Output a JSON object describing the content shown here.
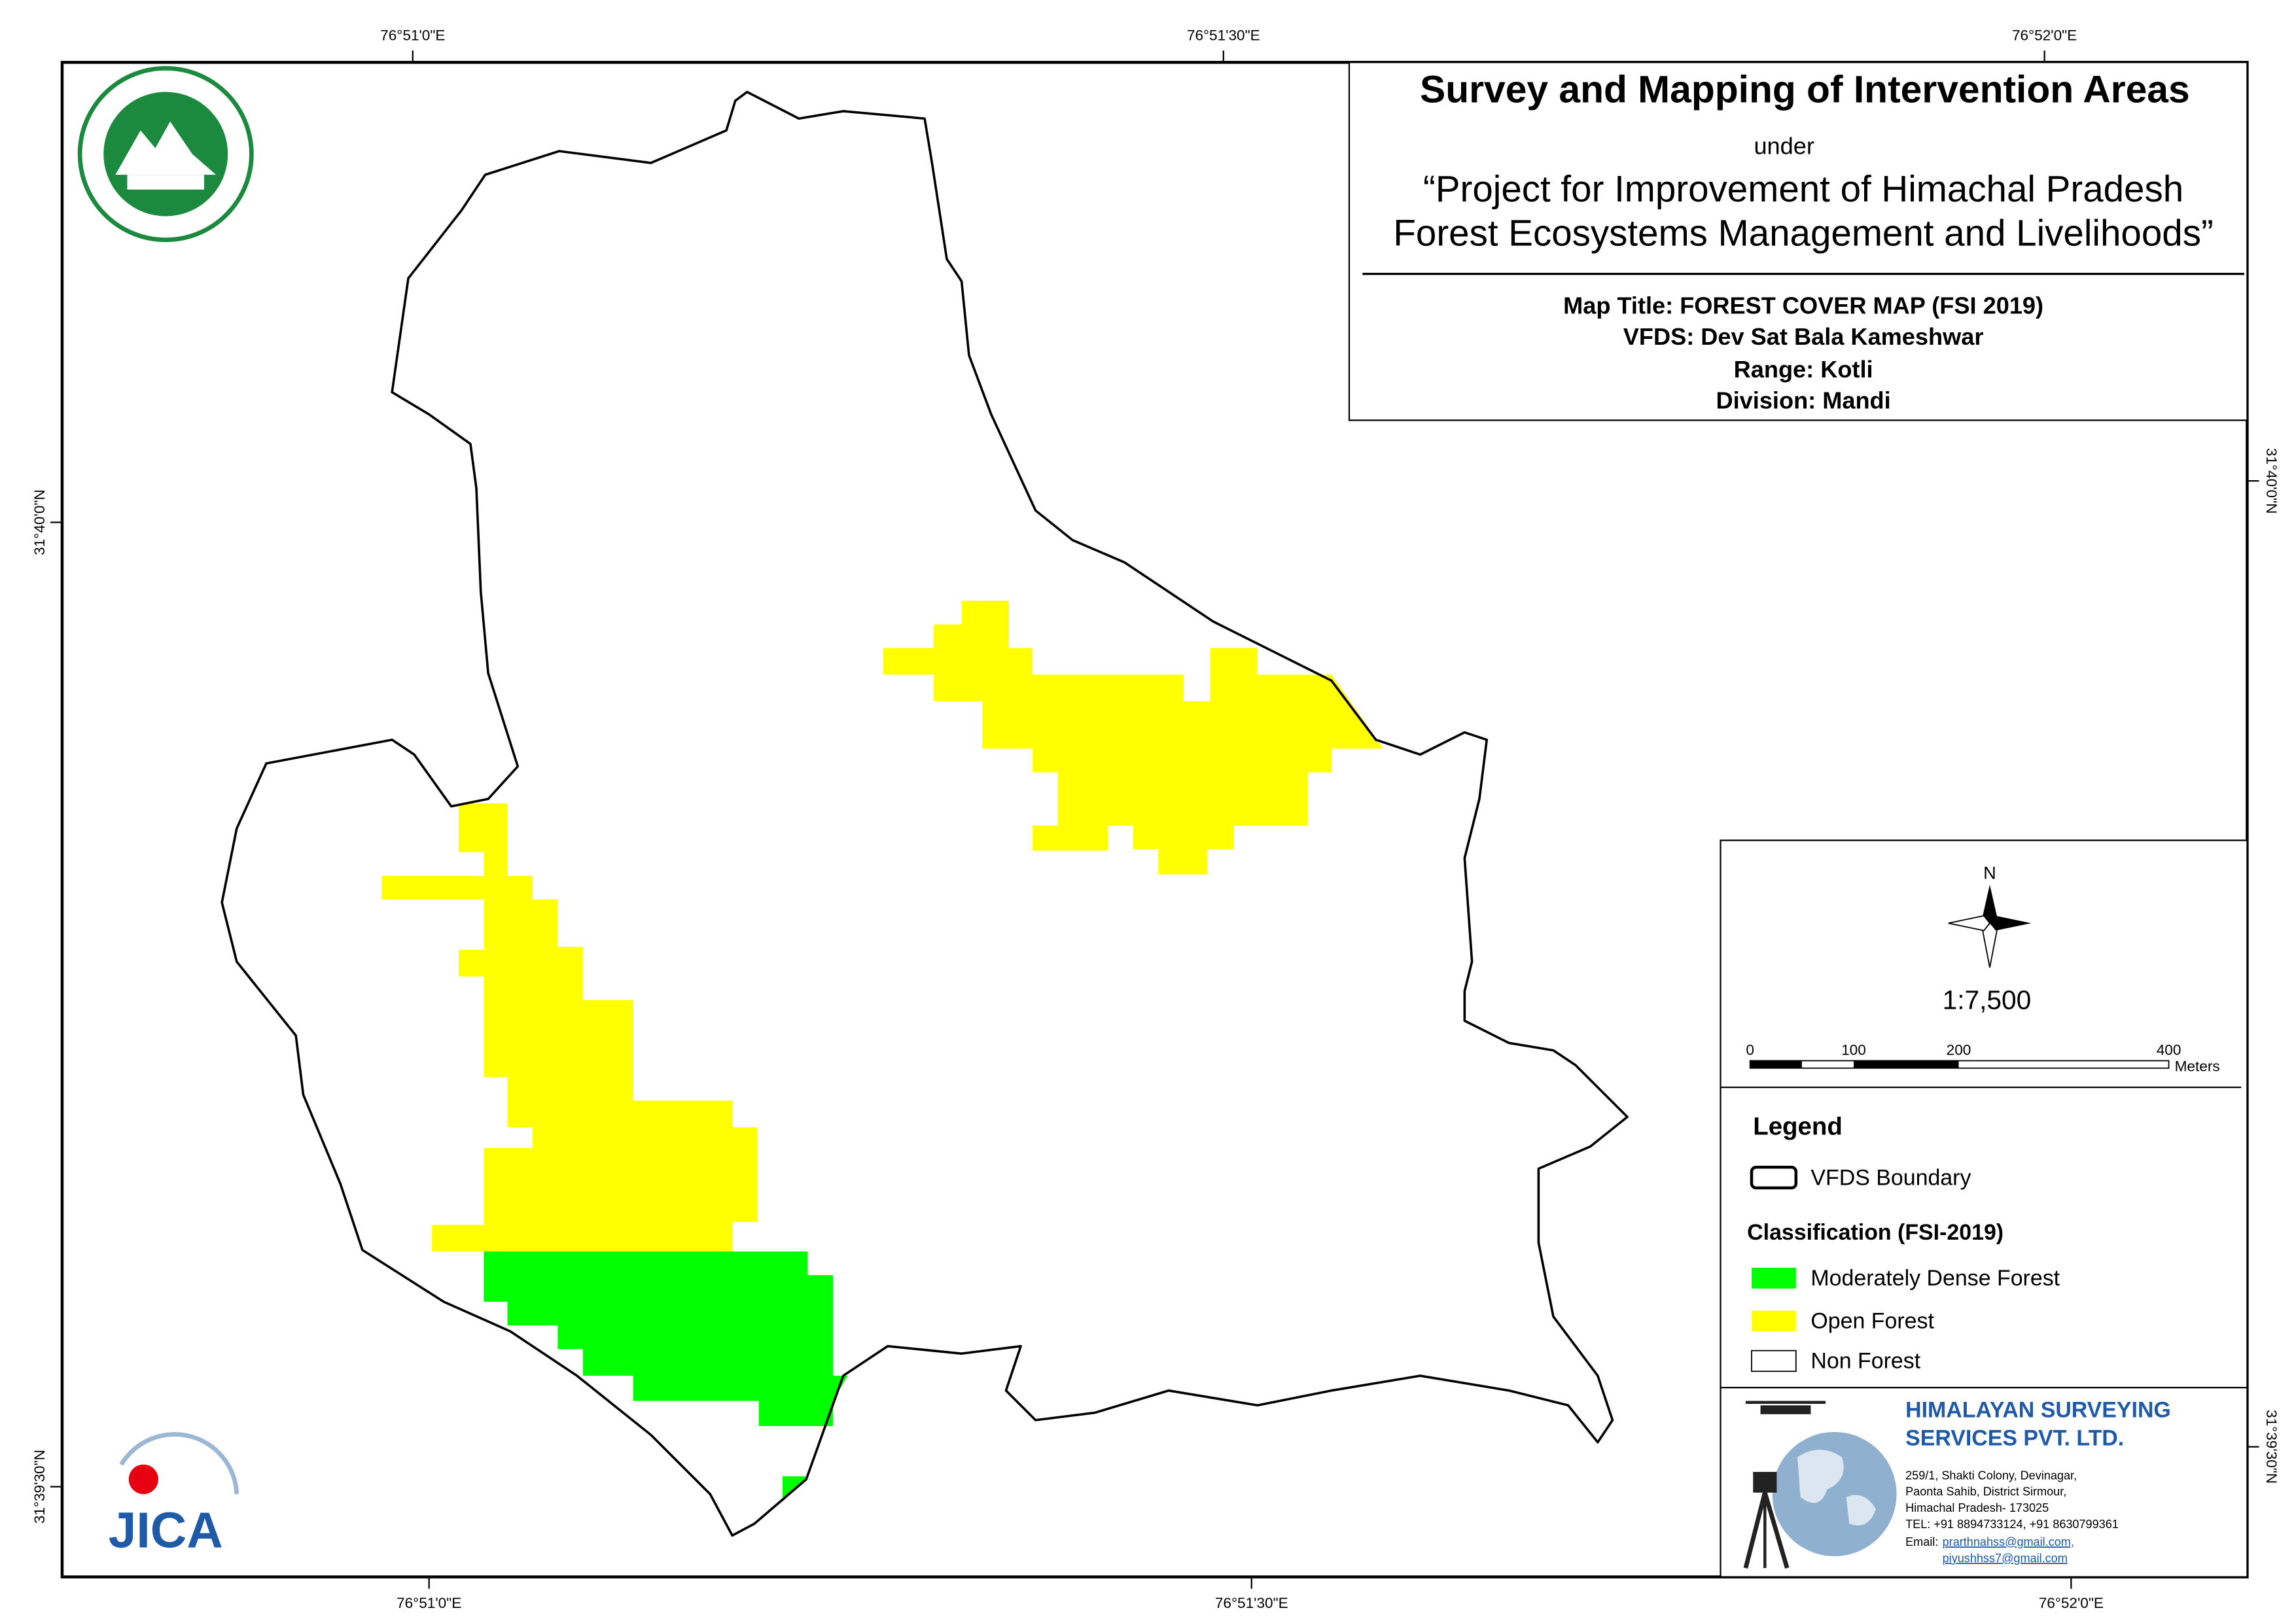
{
  "coordinates": {
    "top": [
      "76°51'0\"E",
      "76°51'30\"E",
      "76°52'0\"E"
    ],
    "bottom": [
      "76°51'0\"E",
      "76°51'30\"E",
      "76°52'0\"E"
    ],
    "left": [
      "31°40'0\"N",
      "31°39'30\"N"
    ],
    "right": [
      "31°40'0\"N",
      "31°39'30\"N"
    ]
  },
  "header": {
    "title": "Survey and Mapping of Intervention Areas",
    "under": "under",
    "project_line1": "“Project for Improvement of Himachal Pradesh",
    "project_line2": "Forest Ecosystems Management and Livelihoods”",
    "map_title": "Map Title: FOREST COVER MAP (FSI 2019)",
    "vfds": "VFDS: Dev Sat Bala Kameshwar",
    "range": "Range: Kotli",
    "division": "Division: Mandi"
  },
  "north": "N",
  "scale": "1:7,500",
  "scale_bar": {
    "labels": [
      "0",
      "100",
      "200",
      "400"
    ],
    "unit": "Meters"
  },
  "legend": {
    "title": "Legend",
    "boundary": "VFDS Boundary",
    "classification_title": "Classification (FSI-2019)",
    "items": [
      "Moderately Dense Forest",
      "Open Forest",
      "Non Forest"
    ]
  },
  "company": {
    "name_line1": "HIMALAYAN SURVEYING",
    "name_line2": "SERVICES PVT. LTD.",
    "address": [
      "259/1, Shakti Colony, Devinagar,",
      "Paonta Sahib, District Sirmour,",
      "Himachal Pradesh- 173025",
      "TEL: +91 8894733124, +91 8630799361"
    ],
    "email_label": "Email:",
    "emails": [
      "prarthnahss@gmail.com,",
      "piyushhss7@gmail.com"
    ]
  },
  "jica": "JICA"
}
